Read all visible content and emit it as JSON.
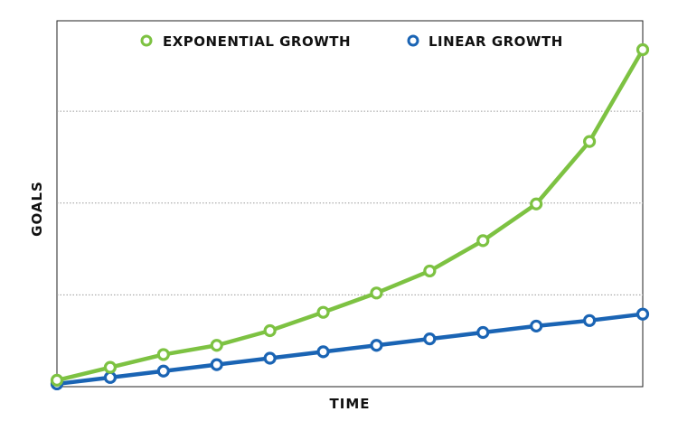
{
  "chart_data": {
    "type": "line",
    "xlabel": "TIME",
    "ylabel": "GOALS",
    "x": [
      0,
      1,
      2,
      3,
      4,
      5,
      6,
      7,
      8,
      9,
      10,
      11
    ],
    "ylim": [
      0,
      3.65
    ],
    "grid": {
      "horizontal": true,
      "style": "dotted",
      "lines": [
        1,
        2,
        3
      ]
    },
    "legend": {
      "placement": "top-center"
    },
    "series": [
      {
        "name": "EXPONENTIAL GROWTH",
        "color": "#7dc242",
        "values": [
          0.07,
          0.21,
          0.35,
          0.45,
          0.61,
          0.81,
          1.02,
          1.26,
          1.59,
          1.99,
          2.67,
          3.67
        ]
      },
      {
        "name": "LINEAR GROWTH",
        "color": "#1a64b4",
        "values": [
          0.03,
          0.1,
          0.17,
          0.24,
          0.31,
          0.38,
          0.45,
          0.52,
          0.59,
          0.66,
          0.72,
          0.79
        ]
      }
    ]
  }
}
